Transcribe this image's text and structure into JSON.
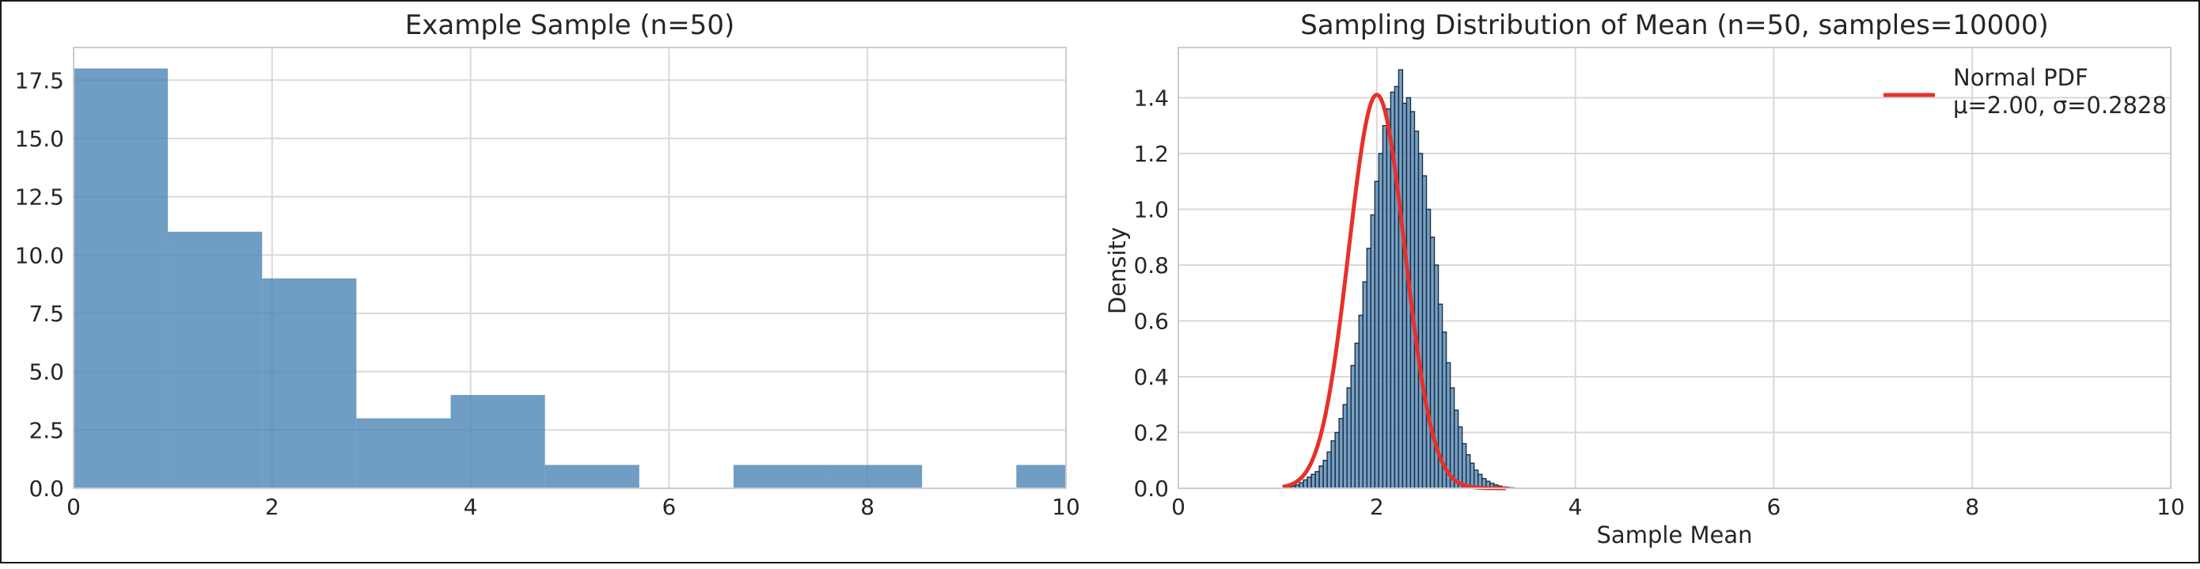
{
  "chart_data": [
    {
      "type": "bar",
      "title": "Example Sample (n=50)",
      "xlabel": "",
      "ylabel": "",
      "xlim": [
        0,
        10
      ],
      "ylim": [
        0,
        18.9
      ],
      "xticks": [
        "0",
        "2",
        "4",
        "6",
        "8",
        "10"
      ],
      "yticks": [
        "0.0",
        "2.5",
        "5.0",
        "7.5",
        "10.0",
        "12.5",
        "15.0",
        "17.5"
      ],
      "grid": true,
      "bin_edges": [
        0.0,
        0.95,
        1.9,
        2.85,
        3.8,
        4.75,
        5.7,
        6.65,
        7.6,
        8.55,
        9.5,
        10.45
      ],
      "values": [
        18,
        11,
        9,
        3,
        4,
        1,
        0,
        1,
        1,
        0,
        1
      ],
      "color": "#4682b4"
    },
    {
      "type": "bar",
      "title": "Sampling Distribution of Mean (n=50, samples=10000)",
      "xlabel": "Sample Mean",
      "ylabel": "Density",
      "xlim": [
        0,
        10
      ],
      "ylim": [
        0,
        1.58
      ],
      "xticks": [
        "0",
        "2",
        "4",
        "6",
        "8",
        "10"
      ],
      "yticks": [
        "0.0",
        "0.2",
        "0.4",
        "0.6",
        "0.8",
        "1.0",
        "1.2",
        "1.4"
      ],
      "grid": true,
      "legend_position": "top-right",
      "histogram": {
        "color": "#4682b4",
        "edge_color": "#1f2d3d",
        "bin_start": 1.1,
        "bin_width": 0.04,
        "density": [
          0.003,
          0.008,
          0.012,
          0.02,
          0.03,
          0.04,
          0.05,
          0.06,
          0.08,
          0.1,
          0.13,
          0.17,
          0.2,
          0.25,
          0.3,
          0.36,
          0.44,
          0.52,
          0.62,
          0.74,
          0.86,
          0.98,
          1.1,
          1.2,
          1.3,
          1.36,
          1.42,
          1.44,
          1.5,
          1.38,
          1.4,
          1.35,
          1.28,
          1.2,
          1.12,
          1.0,
          0.9,
          0.8,
          0.66,
          0.56,
          0.45,
          0.36,
          0.28,
          0.22,
          0.16,
          0.12,
          0.09,
          0.065,
          0.05,
          0.035,
          0.025,
          0.018,
          0.012,
          0.008,
          0.005,
          0.003,
          0.002,
          0.001
        ]
      },
      "series": [
        {
          "name": "Normal PDF\nμ=2.00, σ=0.2828",
          "type": "line",
          "color": "#e8302a",
          "distribution": "normal",
          "mu": 2.0,
          "sigma": 0.2828,
          "x_range": [
            1.05,
            3.3
          ]
        }
      ],
      "legend": [
        "Normal PDF",
        "μ=2.00, σ=0.2828"
      ]
    }
  ]
}
